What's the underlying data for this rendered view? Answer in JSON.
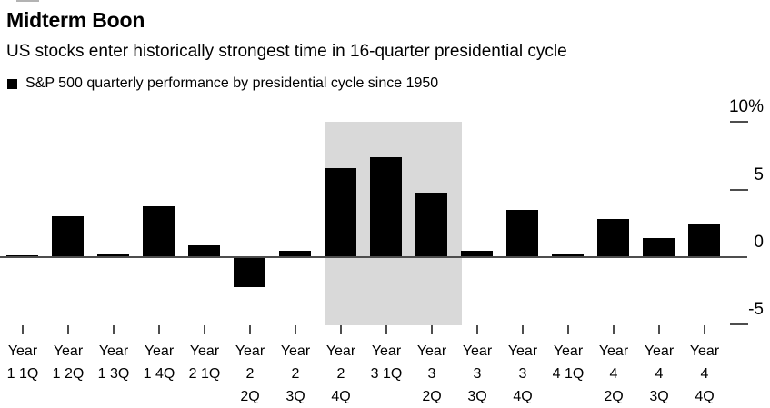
{
  "header": {
    "title": "Midterm Boon",
    "subtitle": "US stocks enter historically strongest time in 16-quarter presidential cycle",
    "legend_label": "S&P 500 quarterly performance by presidential cycle since 1950"
  },
  "colors": {
    "background": "#ffffff",
    "bar": "#000000",
    "highlight_band": "#d9d9d9",
    "axis": "#4d4d4d",
    "text": "#000000"
  },
  "chart_data": {
    "type": "bar",
    "title": "Midterm Boon",
    "subtitle": "US stocks enter historically strongest time in 16-quarter presidential cycle",
    "legend": [
      "S&P 500 quarterly performance by presidential cycle since 1950"
    ],
    "unit": "%",
    "categories": [
      "Year 1 1Q",
      "Year 1 2Q",
      "Year 1 3Q",
      "Year 1 4Q",
      "Year 2 1Q",
      "Year 2 2Q",
      "Year 2 3Q",
      "Year 2 4Q",
      "Year 3 1Q",
      "Year 3 2Q",
      "Year 3 3Q",
      "Year 3 4Q",
      "Year 4 1Q",
      "Year 4 2Q",
      "Year 4 3Q",
      "Year 4 4Q"
    ],
    "category_label_lines": [
      [
        "Year",
        "1 1Q"
      ],
      [
        "Year",
        "1 2Q"
      ],
      [
        "Year",
        "1 3Q"
      ],
      [
        "Year",
        "1 4Q"
      ],
      [
        "Year",
        "2 1Q"
      ],
      [
        "Year",
        "2",
        "2Q"
      ],
      [
        "Year",
        "2",
        "3Q"
      ],
      [
        "Year",
        "2",
        "4Q"
      ],
      [
        "Year",
        "3 1Q"
      ],
      [
        "Year",
        "3",
        "2Q"
      ],
      [
        "Year",
        "3",
        "3Q"
      ],
      [
        "Year",
        "3",
        "4Q"
      ],
      [
        "Year",
        "4 1Q"
      ],
      [
        "Year",
        "4",
        "2Q"
      ],
      [
        "Year",
        "4",
        "3Q"
      ],
      [
        "Year",
        "4",
        "4Q"
      ]
    ],
    "values": [
      0.1,
      3.0,
      0.3,
      3.8,
      0.9,
      -2.2,
      0.5,
      6.6,
      7.4,
      4.8,
      0.5,
      3.5,
      0.2,
      2.8,
      1.4,
      2.4
    ],
    "ylim": [
      -5,
      10
    ],
    "yticks": [
      10,
      5,
      0,
      -5
    ],
    "ytick_labels": [
      "10%",
      "5",
      "0",
      "-5"
    ],
    "grid": false,
    "legend_position": "top-left",
    "highlight_band": {
      "from_category": "Year 2 4Q",
      "to_category": "Year 3 2Q",
      "color": "#d9d9d9",
      "categories": [
        "Year 2 4Q",
        "Year 3 1Q",
        "Year 3 2Q"
      ]
    }
  }
}
